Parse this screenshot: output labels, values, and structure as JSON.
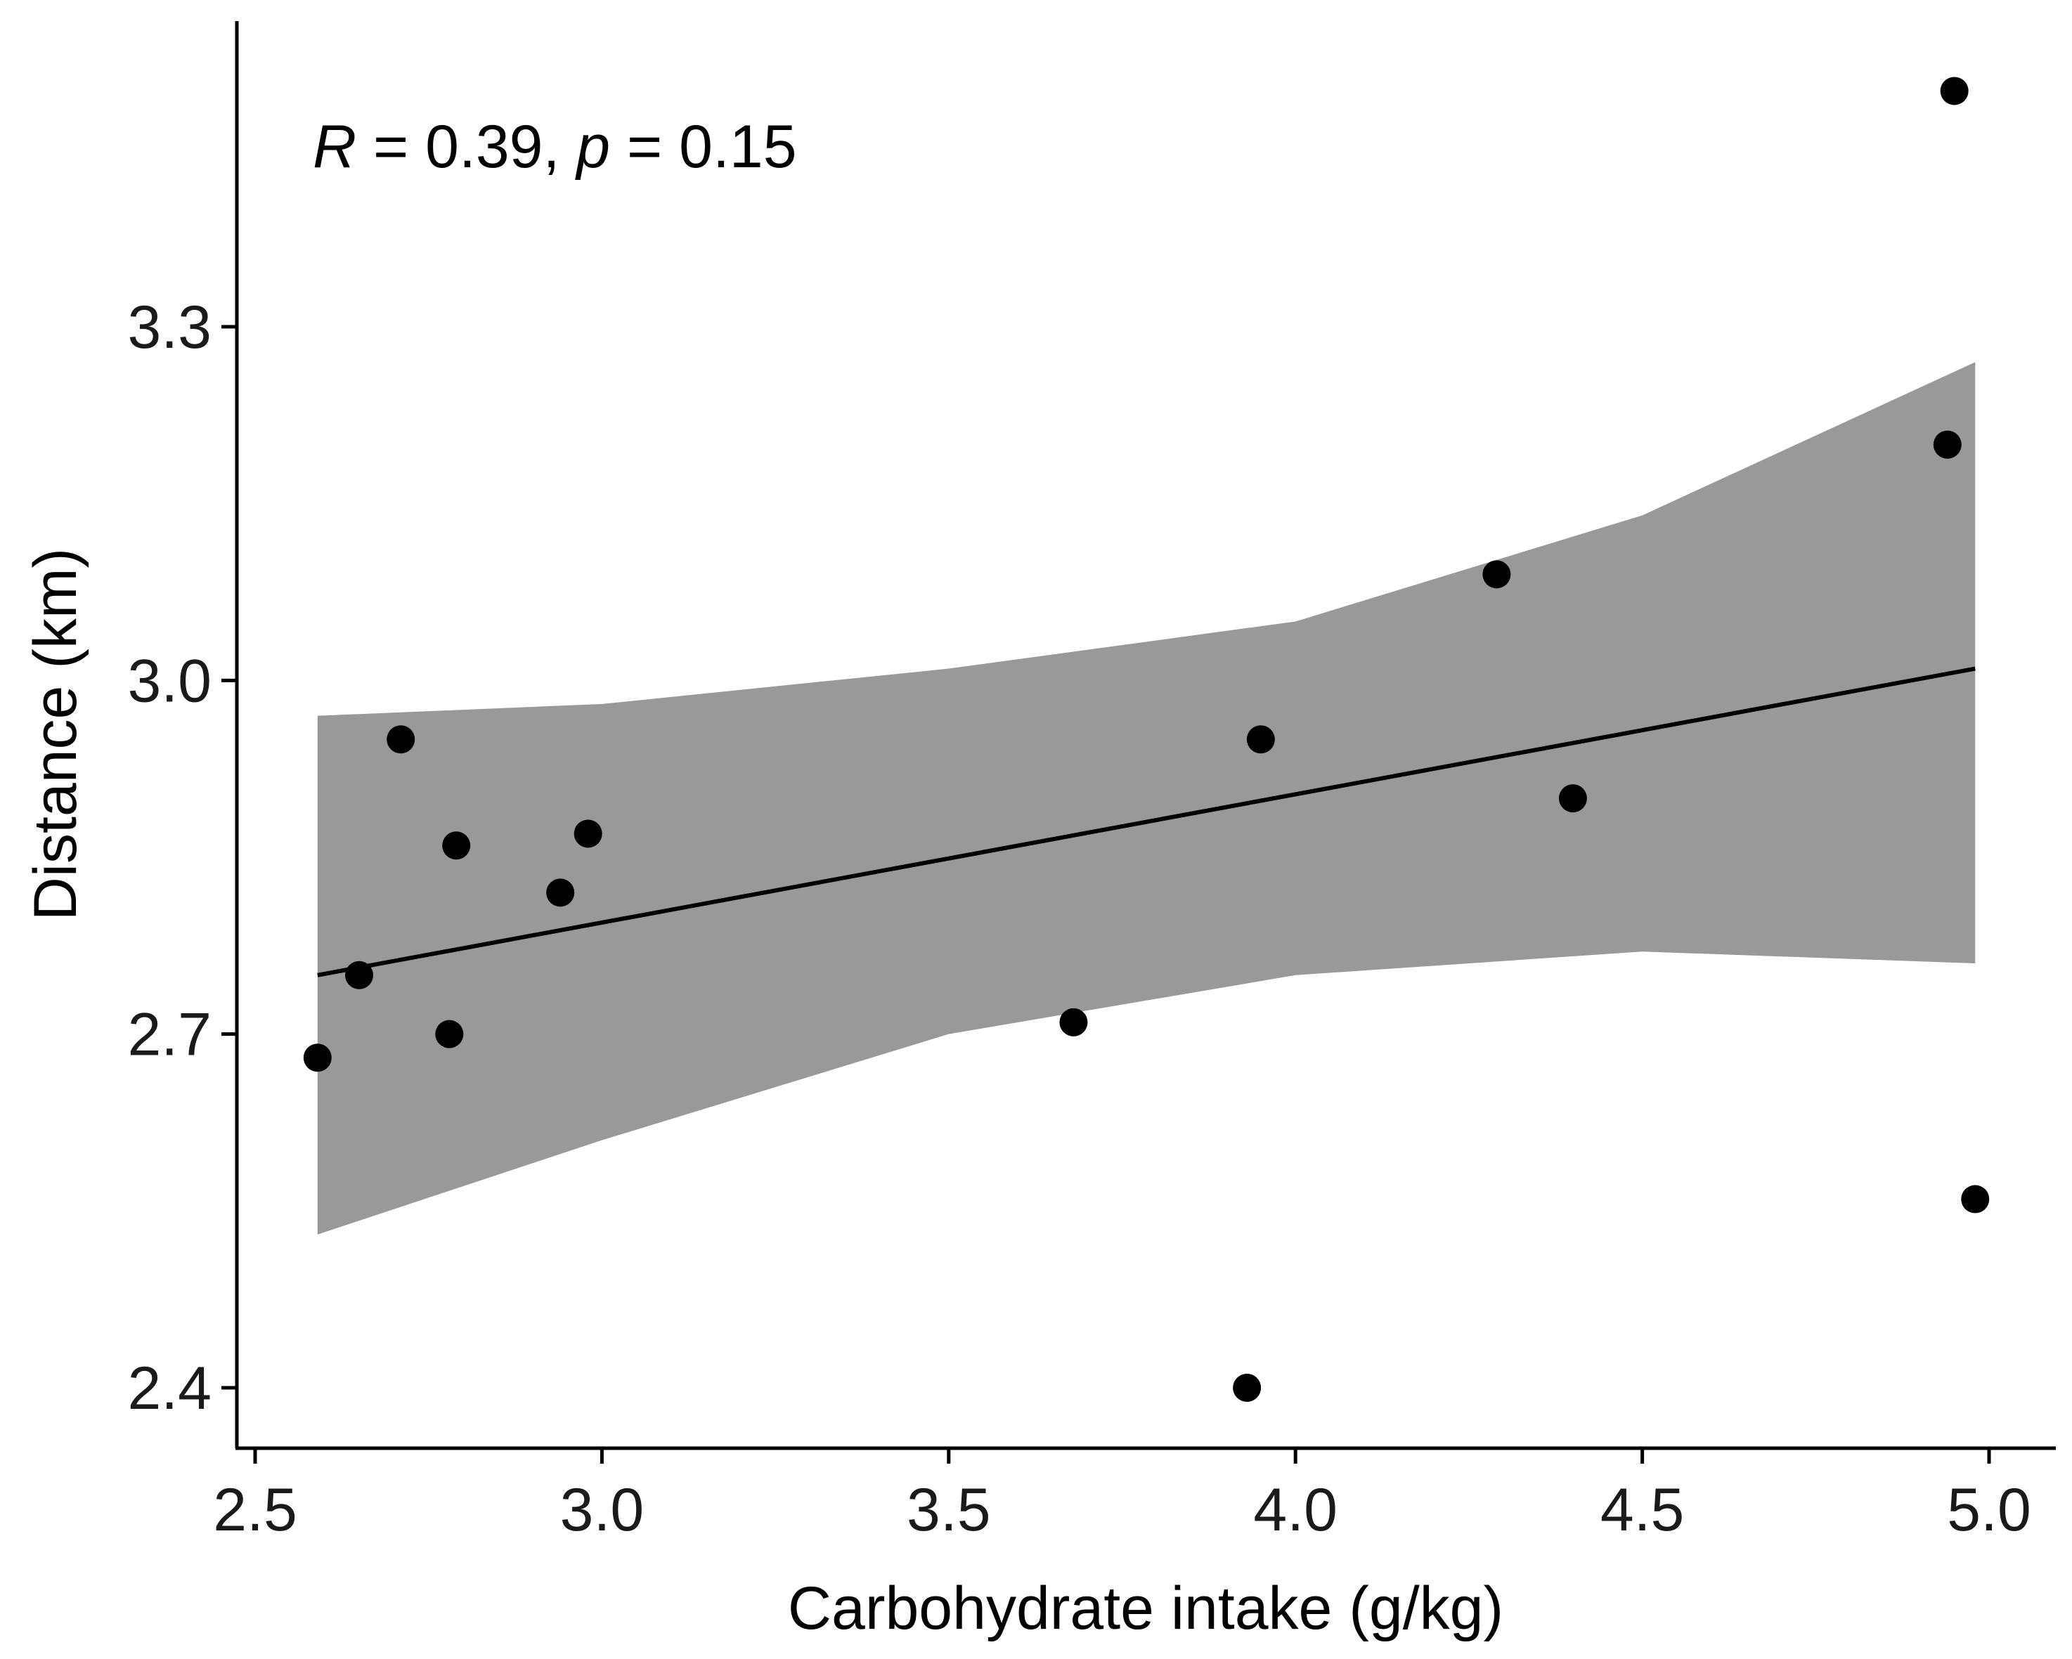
{
  "chart_data": {
    "type": "scatter",
    "title": "",
    "xlabel": "Carbohydrate intake (g/kg)",
    "ylabel": "Distance (km)",
    "xlim": [
      2.47,
      5.07
    ],
    "ylim": [
      2.35,
      3.6
    ],
    "x_ticks": [
      2.5,
      3.0,
      3.5,
      4.0,
      4.5,
      5.0
    ],
    "x_tick_labels": [
      "2.5",
      "3.0",
      "3.5",
      "4.0",
      "4.5",
      "5.0"
    ],
    "y_ticks": [
      2.4,
      2.7,
      3.0,
      3.3
    ],
    "y_tick_labels": [
      "2.4",
      "2.7",
      "3.0",
      "3.3"
    ],
    "grid": false,
    "annotation": {
      "r_symbol": "R",
      "r_text": " = 0.39, ",
      "p_symbol": "p",
      "p_text": " = 0.15"
    },
    "points": [
      {
        "x": 2.59,
        "y": 2.68
      },
      {
        "x": 2.65,
        "y": 2.75
      },
      {
        "x": 2.71,
        "y": 2.95
      },
      {
        "x": 2.78,
        "y": 2.7
      },
      {
        "x": 2.79,
        "y": 2.86
      },
      {
        "x": 2.94,
        "y": 2.82
      },
      {
        "x": 2.98,
        "y": 2.87
      },
      {
        "x": 3.68,
        "y": 2.71
      },
      {
        "x": 3.93,
        "y": 2.4
      },
      {
        "x": 3.95,
        "y": 2.95
      },
      {
        "x": 4.29,
        "y": 3.09
      },
      {
        "x": 4.4,
        "y": 2.9
      },
      {
        "x": 4.94,
        "y": 3.2
      },
      {
        "x": 4.95,
        "y": 3.5
      },
      {
        "x": 4.98,
        "y": 2.56
      }
    ],
    "fit_line": {
      "x": [
        2.59,
        4.98
      ],
      "y": [
        2.75,
        3.01
      ]
    },
    "confidence_band": {
      "x": [
        2.59,
        3.0,
        3.5,
        4.0,
        4.5,
        4.98
      ],
      "upper": [
        2.97,
        2.98,
        3.01,
        3.05,
        3.14,
        3.27
      ],
      "lower": [
        2.53,
        2.61,
        2.7,
        2.75,
        2.77,
        2.76
      ]
    },
    "colors": {
      "points": "#000000",
      "fit_line": "#000000",
      "band": "#999999",
      "axes": "#000000"
    }
  }
}
